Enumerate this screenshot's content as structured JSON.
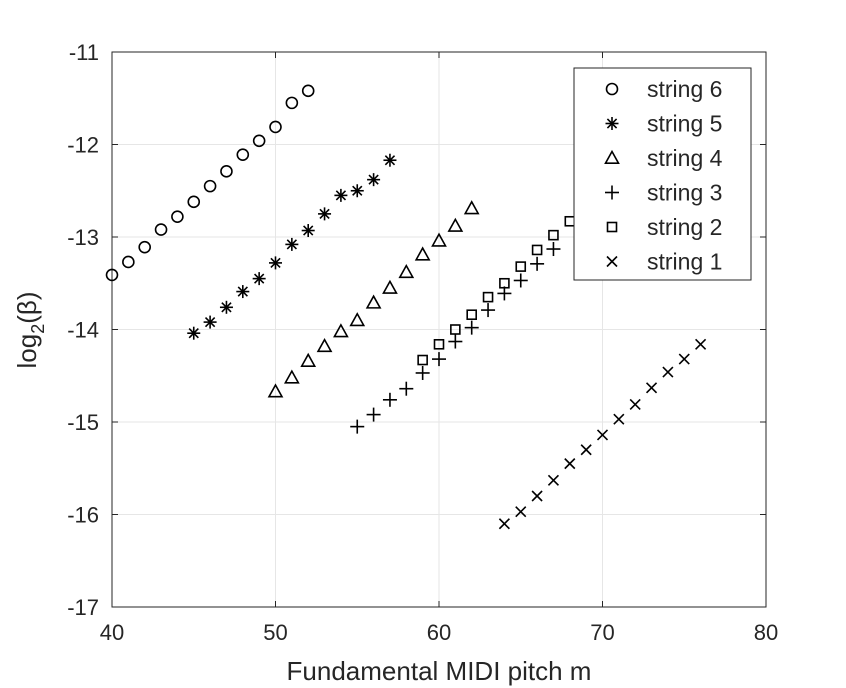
{
  "chart_data": {
    "type": "scatter",
    "title": "",
    "xlabel": "Fundamental MIDI pitch m",
    "ylabel_main": "log",
    "ylabel_sub": "2",
    "ylabel_arg": "(β)",
    "xlim": [
      40,
      80
    ],
    "ylim": [
      -17,
      -11
    ],
    "xticks": [
      40,
      50,
      60,
      70,
      80
    ],
    "yticks": [
      -11,
      -12,
      -13,
      -14,
      -15,
      -16,
      -17
    ],
    "grid": true,
    "legend_position": "top-right",
    "series": [
      {
        "name": "string 6",
        "marker": "circle",
        "x": [
          40,
          41,
          42,
          43,
          44,
          45,
          46,
          47,
          48,
          49,
          50,
          51,
          52
        ],
        "y": [
          -13.41,
          -13.27,
          -13.11,
          -12.92,
          -12.78,
          -12.62,
          -12.45,
          -12.29,
          -12.11,
          -11.96,
          -11.81,
          -11.55,
          -11.42
        ]
      },
      {
        "name": "string 5",
        "marker": "asterisk",
        "x": [
          45,
          46,
          47,
          48,
          49,
          50,
          51,
          52,
          53,
          54,
          55,
          56,
          57
        ],
        "y": [
          -14.04,
          -13.92,
          -13.76,
          -13.59,
          -13.45,
          -13.28,
          -13.08,
          -12.93,
          -12.75,
          -12.55,
          -12.5,
          -12.38,
          -12.17
        ]
      },
      {
        "name": "string 4",
        "marker": "triangle",
        "x": [
          50,
          51,
          52,
          53,
          54,
          55,
          56,
          57,
          58,
          59,
          60,
          61,
          62
        ],
        "y": [
          -14.67,
          -14.52,
          -14.34,
          -14.18,
          -14.02,
          -13.9,
          -13.71,
          -13.55,
          -13.38,
          -13.19,
          -13.04,
          -12.88,
          -12.69
        ]
      },
      {
        "name": "string 3",
        "marker": "plus",
        "x": [
          55,
          56,
          57,
          58,
          59,
          60,
          61,
          62,
          63,
          64,
          65,
          66,
          67
        ],
        "y": [
          -15.05,
          -14.92,
          -14.76,
          -14.64,
          -14.47,
          -14.32,
          -14.13,
          -13.98,
          -13.79,
          -13.61,
          -13.47,
          -13.29,
          -13.13
        ]
      },
      {
        "name": "string 2",
        "marker": "square",
        "x": [
          59,
          60,
          61,
          62,
          63,
          64,
          65,
          66,
          67,
          68
        ],
        "y": [
          -14.33,
          -14.16,
          -14.0,
          -13.84,
          -13.65,
          -13.5,
          -13.32,
          -13.14,
          -12.98,
          -12.83
        ]
      },
      {
        "name": "string 1",
        "marker": "cross",
        "x": [
          64,
          65,
          66,
          67,
          68,
          69,
          70,
          71,
          72,
          73,
          74,
          75,
          76
        ],
        "y": [
          -16.1,
          -15.97,
          -15.8,
          -15.63,
          -15.45,
          -15.3,
          -15.14,
          -14.97,
          -14.81,
          -14.63,
          -14.46,
          -14.32,
          -14.16
        ]
      }
    ]
  }
}
